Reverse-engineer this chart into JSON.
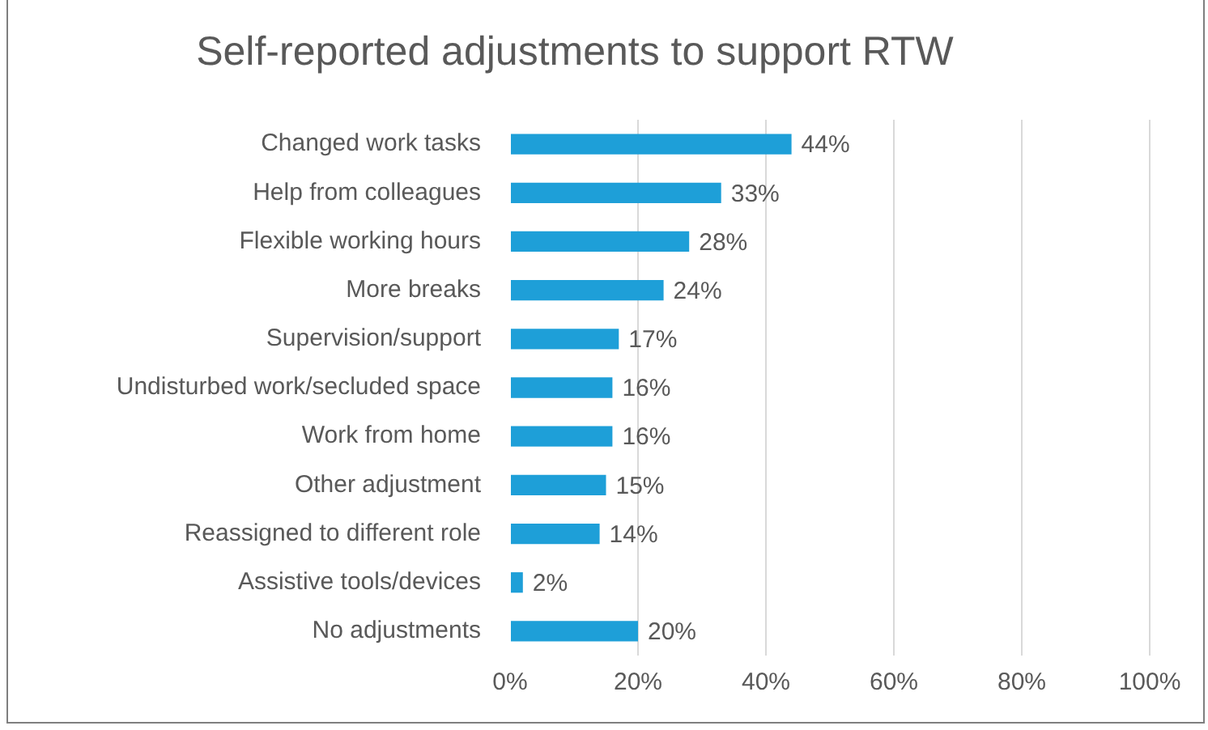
{
  "chart_data": {
    "type": "bar",
    "orientation": "horizontal",
    "title": "Self-reported adjustments to support RTW",
    "categories": [
      "Changed work tasks",
      "Help from colleagues",
      "Flexible working hours",
      "More breaks",
      "Supervision/support",
      "Undisturbed work/secluded space",
      "Work from home",
      "Other adjustment",
      "Reassigned to different role",
      "Assistive tools/devices",
      "No adjustments"
    ],
    "values": [
      44,
      33,
      28,
      24,
      17,
      16,
      16,
      15,
      14,
      2,
      20
    ],
    "value_labels": [
      "44%",
      "33%",
      "28%",
      "24%",
      "17%",
      "16%",
      "16%",
      "15%",
      "14%",
      "2%",
      "20%"
    ],
    "color": "#1e9fd8",
    "xlim": [
      0,
      100
    ],
    "xticks": [
      {
        "value": 0,
        "label": "0%"
      },
      {
        "value": 20,
        "label": "20%"
      },
      {
        "value": 40,
        "label": "40%"
      },
      {
        "value": 60,
        "label": "60%"
      },
      {
        "value": 80,
        "label": "80%"
      },
      {
        "value": 100,
        "label": "100%"
      }
    ],
    "grid": "x",
    "legend": false
  }
}
